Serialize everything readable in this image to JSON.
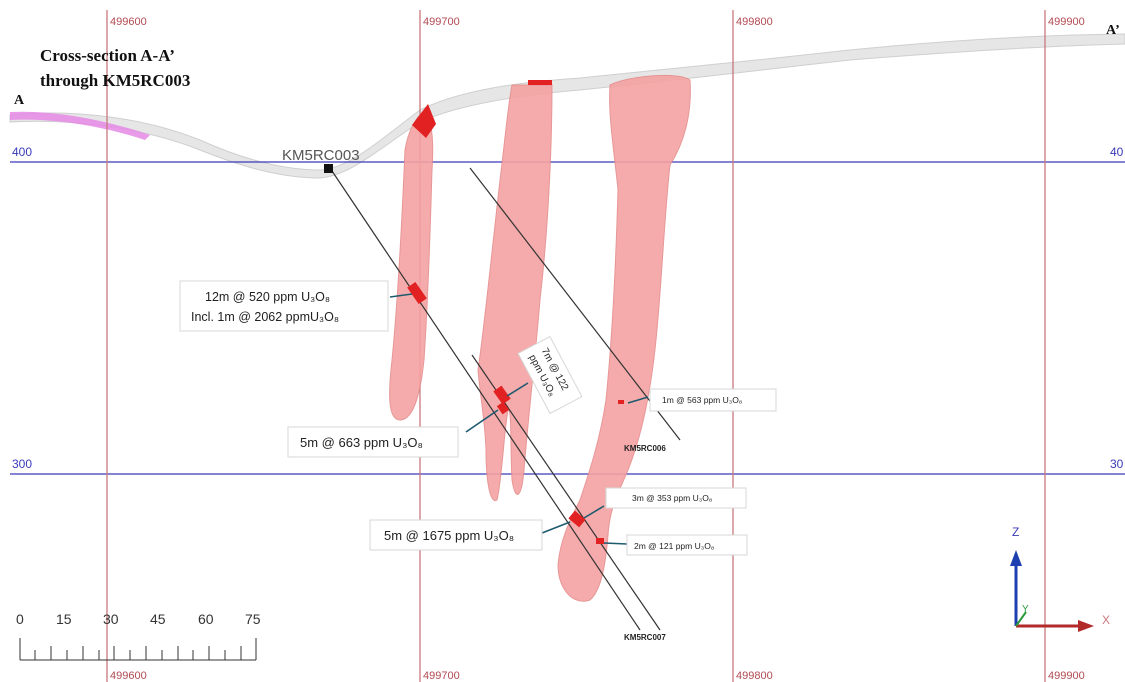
{
  "title": {
    "line1": "Cross-section A-A’",
    "line2": "through KM5RC003"
  },
  "section_ends": {
    "start": "A",
    "end": "A’"
  },
  "eastings": [
    "499600",
    "499700",
    "499800",
    "499900"
  ],
  "elevations": [
    "400",
    "300"
  ],
  "right_elevation_labels": [
    "40",
    "30"
  ],
  "collar_label": "KM5RC003",
  "drillholes": [
    "KM5RC006",
    "KM5RC007"
  ],
  "intercepts": [
    {
      "id": "i1",
      "line1": "12m @ 520 ppm U₃O₈",
      "line2": "Incl. 1m @ 2062 ppmU₃O₈"
    },
    {
      "id": "i2",
      "line1": "7m @ 122",
      "line2": "ppm U₃O₈"
    },
    {
      "id": "i3",
      "line1": "1m @ 563 ppm U₃O₈"
    },
    {
      "id": "i4",
      "line1": "5m @ 663 ppm U₃O₈"
    },
    {
      "id": "i5",
      "line1": "3m @ 353 ppm U₃O₈"
    },
    {
      "id": "i6",
      "line1": "5m @ 1675 ppm U₃O₈"
    },
    {
      "id": "i7",
      "line1": "2m @ 121 ppm U₃O₈"
    }
  ],
  "scale_bar": {
    "ticks": [
      "0",
      "15",
      "30",
      "45",
      "60",
      "75"
    ]
  },
  "axes": {
    "z": "Z",
    "y": "Y",
    "x": "X"
  },
  "colors": {
    "mineralised_body": "#f5a2a2",
    "high_grade": "#e22222",
    "easting_grid": "#c9787e",
    "elevation_grid": "#3b3bb8",
    "surface_cover": "#e6e6e6",
    "surface_highlight": "#e58ae6"
  }
}
